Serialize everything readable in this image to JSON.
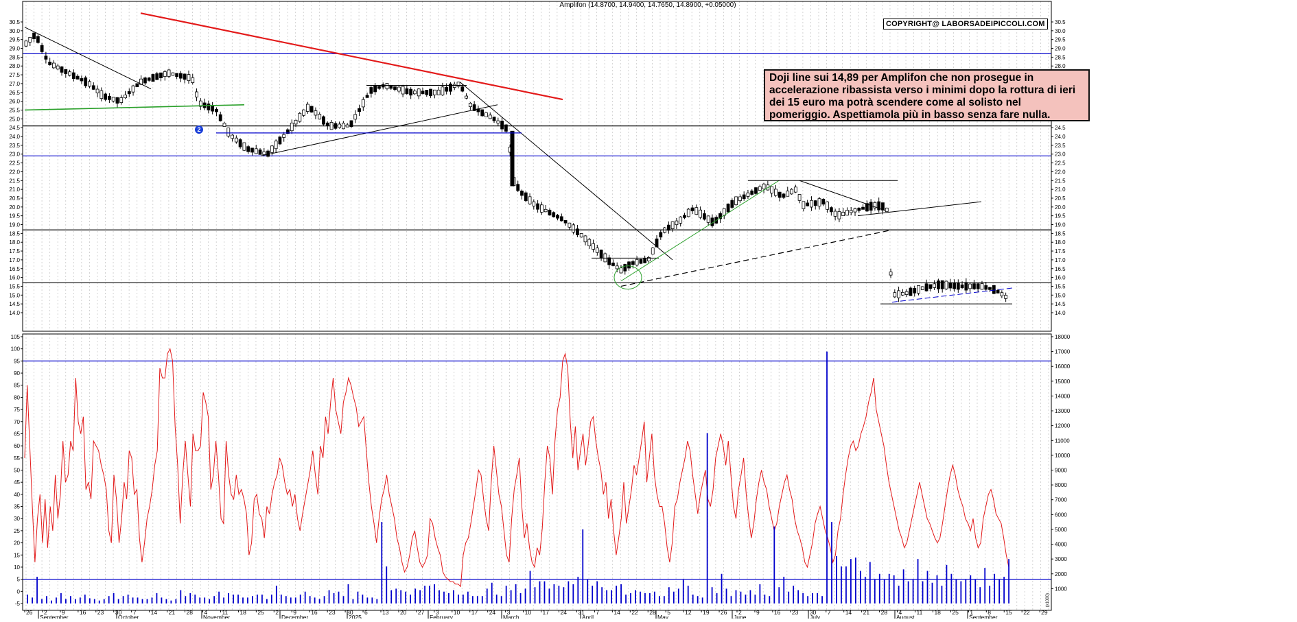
{
  "chart_data": [
    {
      "type": "candlestick",
      "title": "Amplifon (14.8700, 14.9400, 14.7650, 14.8900, +0.05000)",
      "ylim": [
        13.0,
        31.0
      ],
      "yticks": [
        "14.0",
        "14.5",
        "15.0",
        "15.5",
        "16.0",
        "16.5",
        "17.0",
        "17.5",
        "18.0",
        "18.5",
        "19.0",
        "19.5",
        "20.0",
        "20.5",
        "21.0",
        "21.5",
        "22.0",
        "22.5",
        "23.0",
        "23.5",
        "24.0",
        "24.5",
        "25.0",
        "25.5",
        "26.0",
        "26.5",
        "27.0",
        "27.5",
        "28.0",
        "28.5",
        "29.0",
        "29.5",
        "30.0",
        "30.5"
      ],
      "grid": true,
      "legend": "none",
      "annotation_text": "Doji line sui 14,89 per Amplifon che non prosegue in accelerazione ribassista verso i minimi dopo la rottura di ieri dei 15 euro ma potrà scendere come al solisto nel pomeriggio. Aspettiamola più in basso senza fare nulla.",
      "copyright": "COPYRIGHT@ LABORSADEIPICCOLI.COM",
      "marker_label": "2",
      "horizontal_levels": [
        {
          "value": 28.7,
          "color": "#0000cc"
        },
        {
          "value": 24.6,
          "color": "#000000"
        },
        {
          "value": 22.9,
          "color": "#0000cc"
        },
        {
          "value": 18.7,
          "color": "#000000"
        },
        {
          "value": 15.7,
          "color": "#000000"
        }
      ],
      "ohlc_sample": [
        {
          "x": "Sep 26",
          "o": 29.2,
          "h": 29.6,
          "l": 28.8,
          "c": 29.0
        },
        {
          "x": "Oct 14",
          "o": 26.4,
          "h": 27.3,
          "l": 25.8,
          "c": 27.1
        },
        {
          "x": "Nov 25",
          "o": 23.1,
          "h": 23.5,
          "l": 22.9,
          "c": 23.3
        },
        {
          "x": "Feb 11",
          "o": 26.9,
          "h": 27.2,
          "l": 26.6,
          "c": 27.1
        },
        {
          "x": "Mar 05",
          "o": 24.3,
          "h": 24.5,
          "l": 20.9,
          "c": 21.2
        },
        {
          "x": "Apr 22",
          "o": 16.2,
          "h": 16.6,
          "l": 15.9,
          "c": 16.4
        },
        {
          "x": "Jun 26",
          "o": 21.4,
          "h": 21.5,
          "l": 20.0,
          "c": 20.1
        },
        {
          "x": "Jul 31",
          "o": 15.2,
          "h": 15.5,
          "l": 14.6,
          "c": 14.9
        },
        {
          "x": "Sep 15",
          "o": 14.87,
          "h": 14.94,
          "l": 14.765,
          "c": 14.89
        }
      ],
      "x_day_labels": [
        "26",
        "2",
        "9",
        "16",
        "23",
        "30",
        "7",
        "14",
        "21",
        "28",
        "4",
        "11",
        "18",
        "25",
        "2",
        "9",
        "16",
        "23",
        "30",
        "6",
        "13",
        "20",
        "27",
        "3",
        "10",
        "17",
        "24",
        "3",
        "10",
        "17",
        "24",
        "31",
        "7",
        "14",
        "22",
        "28",
        "5",
        "12",
        "19",
        "26",
        "2",
        "9",
        "16",
        "23",
        "30",
        "7",
        "14",
        "21",
        "28",
        "4",
        "11",
        "18",
        "25",
        "1",
        "8",
        "15",
        "22",
        "29"
      ],
      "x_month_labels": [
        "September",
        "October",
        "November",
        "December",
        "2025",
        "February",
        "March",
        "April",
        "May",
        "June",
        "July",
        "August",
        "September"
      ]
    },
    {
      "type": "line+bar",
      "ylim_left": [
        -5,
        105
      ],
      "yticks_left": [
        "-5",
        "0",
        "5",
        "10",
        "15",
        "20",
        "25",
        "30",
        "35",
        "40",
        "45",
        "50",
        "55",
        "60",
        "65",
        "70",
        "75",
        "80",
        "85",
        "90",
        "95",
        "100",
        "105"
      ],
      "ylim_right": [
        0,
        18000
      ],
      "yticks_right": [
        "1000",
        "2000",
        "3000",
        "4000",
        "5000",
        "6000",
        "7000",
        "8000",
        "9000",
        "10000",
        "11000",
        "12000",
        "13000",
        "14000",
        "15000",
        "16000",
        "17000",
        "18000"
      ],
      "right_axis_caption": "(x1000)",
      "horizontal_levels": [
        {
          "value": 95,
          "color": "#0000cc"
        },
        {
          "value": 5,
          "color": "#0000cc"
        }
      ],
      "series": [
        {
          "values": [
            55,
            85,
            60,
            35,
            12,
            30,
            40,
            20,
            38,
            18,
            35,
            25,
            48,
            30,
            40,
            62,
            45,
            48,
            62,
            58,
            88,
            70,
            65,
            72,
            42,
            45,
            38,
            62,
            60,
            58,
            52,
            48,
            42,
            25,
            20,
            48,
            38,
            20,
            30,
            45,
            38,
            58,
            55,
            40,
            42,
            22,
            12,
            20,
            30,
            35,
            42,
            52,
            58,
            92,
            88,
            88,
            98,
            100,
            95,
            68,
            52,
            28,
            48,
            62,
            48,
            35,
            65,
            58,
            58,
            60,
            82,
            78,
            72,
            42,
            48,
            62,
            48,
            30,
            28,
            62,
            48,
            40,
            38,
            48,
            40,
            42,
            38,
            32,
            15,
            20,
            38,
            40,
            32,
            30,
            22,
            35,
            32,
            40,
            45,
            48,
            55,
            52,
            45,
            40,
            42,
            35,
            40,
            30,
            25,
            32,
            38,
            44,
            50,
            58,
            48,
            40,
            60,
            55,
            72,
            65,
            78,
            88,
            75,
            70,
            65,
            78,
            82,
            88,
            85,
            80,
            76,
            68,
            70,
            72,
            58,
            45,
            35,
            28,
            20,
            30,
            38,
            42,
            48,
            40,
            35,
            30,
            22,
            18,
            12,
            8,
            10,
            15,
            22,
            25,
            18,
            12,
            10,
            12,
            15,
            30,
            28,
            22,
            18,
            15,
            8,
            6,
            5,
            4,
            4,
            3,
            3,
            2,
            15,
            20,
            22,
            28,
            35,
            42,
            50,
            48,
            38,
            30,
            25,
            45,
            60,
            50,
            40,
            35,
            25,
            15,
            12,
            30,
            42,
            48,
            55,
            35,
            22,
            28,
            18,
            12,
            10,
            18,
            15,
            26,
            45,
            60,
            55,
            40,
            62,
            75,
            80,
            95,
            98,
            92,
            70,
            55,
            68,
            50,
            58,
            65,
            52,
            60,
            70,
            72,
            62,
            55,
            50,
            40,
            45,
            30,
            38,
            25,
            15,
            22,
            30,
            45,
            28,
            35,
            42,
            52,
            48,
            55,
            62,
            70,
            45,
            55,
            65,
            48,
            40,
            35,
            35,
            28,
            18,
            12,
            20,
            35,
            38,
            45,
            50,
            55,
            62,
            58,
            48,
            40,
            32,
            40,
            45,
            50,
            38,
            35,
            42,
            55,
            60,
            65,
            60,
            52,
            62,
            48,
            35,
            30,
            42,
            48,
            55,
            40,
            30,
            22,
            28,
            38,
            45,
            50,
            45,
            42,
            35,
            30,
            25,
            28,
            35,
            40,
            45,
            48,
            42,
            38,
            30,
            25,
            22,
            18,
            12,
            10,
            15,
            20,
            28,
            32,
            35,
            30,
            25,
            22,
            18,
            12,
            15,
            25,
            30,
            40,
            48,
            55,
            60,
            62,
            58,
            60,
            65,
            68,
            72,
            78,
            82,
            88,
            75,
            70,
            65,
            60,
            52,
            45,
            40,
            35,
            30,
            25,
            22,
            18,
            20,
            25,
            30,
            35,
            40,
            45,
            40,
            35,
            30,
            28,
            25,
            22,
            20,
            22,
            28,
            35,
            42,
            48,
            52,
            48,
            42,
            38,
            35,
            30,
            28,
            25,
            30,
            22,
            18,
            20,
            30,
            35,
            40,
            42,
            38,
            32,
            30,
            28,
            22,
            15,
            10
          ]
        },
        {
          "values": [
            600,
            400,
            1800,
            300,
            500,
            200,
            400,
            700,
            300,
            500,
            300,
            400,
            600,
            350,
            300,
            200,
            300,
            500,
            700,
            300,
            500,
            600,
            400,
            400,
            300,
            300,
            400,
            700,
            400,
            300,
            200,
            300,
            900,
            500,
            700,
            600,
            400,
            400,
            300,
            500,
            800,
            400,
            700,
            600,
            600,
            400,
            400,
            500,
            600,
            600,
            300,
            600,
            1200,
            600,
            500,
            400,
            400,
            600,
            800,
            500,
            400,
            300,
            500,
            900,
            700,
            800,
            500,
            1300,
            300,
            800,
            600,
            400,
            400,
            300,
            5500,
            2500,
            900,
            1000,
            900,
            800,
            600,
            1000,
            900,
            1200,
            1200,
            1300,
            900,
            800,
            700,
            900,
            600,
            600,
            800,
            500,
            500,
            500,
            1000,
            1400,
            600,
            500,
            1200,
            900,
            1300,
            700,
            1000,
            2200,
            1100,
            1500,
            1500,
            1000,
            1300,
            1200,
            1100,
            1500,
            1300,
            1800,
            5000,
            1600,
            1200,
            1500,
            1100,
            900,
            900,
            1200,
            1300,
            600,
            700,
            900,
            800,
            700,
            700,
            800,
            500,
            500,
            1100,
            800,
            1000,
            1600,
            1200,
            600,
            500,
            400,
            11500,
            1100,
            700,
            2000,
            1000,
            500,
            900,
            800,
            600,
            900,
            600,
            1300,
            600,
            500,
            5200,
            1100,
            1800,
            800,
            1200,
            900,
            700,
            500,
            700,
            700,
            500,
            17000,
            5500,
            3200,
            2500,
            2500,
            3000,
            3100,
            2200,
            1800,
            2800,
            1600,
            2000,
            1600,
            2000,
            1900,
            1200,
            2300,
            1500,
            1600,
            3000,
            1500,
            2200,
            1400,
            1900,
            1200,
            2600,
            2000,
            1600,
            1500,
            1600,
            1900,
            1600,
            1100,
            2400,
            1200,
            2000,
            1600,
            1800,
            3000
          ]
        }
      ]
    }
  ]
}
